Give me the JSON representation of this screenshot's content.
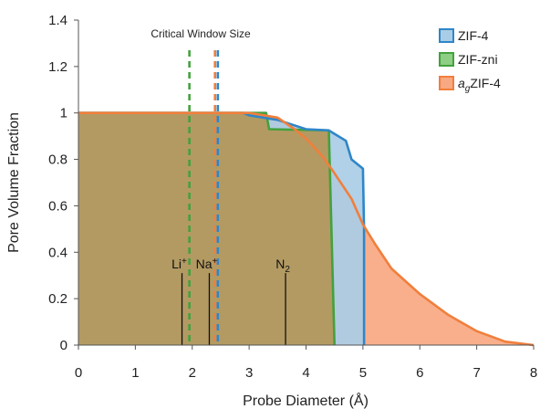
{
  "chart_data": {
    "type": "area",
    "xlabel": "Probe Diameter (Å)",
    "ylabel": "Pore Volume Fraction",
    "xlim": [
      0,
      8
    ],
    "ylim": [
      0,
      1.4
    ],
    "x_ticks": [
      "0",
      "1",
      "2",
      "3",
      "4",
      "5",
      "6",
      "7",
      "8"
    ],
    "y_ticks": [
      "0",
      "0.2",
      "0.4",
      "0.6",
      "0.8",
      "1",
      "1.2",
      "1.4"
    ],
    "grid": false,
    "legend_position": "top-right",
    "annotation": "Critical Window Size",
    "series": [
      {
        "name": "ZIF-4",
        "stroke": "#2f86c8",
        "fill": "#a9cde6",
        "points": [
          [
            0,
            1.0
          ],
          [
            2.9,
            1.0
          ],
          [
            3.0,
            0.99
          ],
          [
            3.5,
            0.97
          ],
          [
            4.0,
            0.93
          ],
          [
            4.4,
            0.925
          ],
          [
            4.5,
            0.91
          ],
          [
            4.7,
            0.88
          ],
          [
            4.75,
            0.84
          ],
          [
            4.8,
            0.8
          ],
          [
            5.0,
            0.76
          ],
          [
            5.02,
            0.5
          ],
          [
            5.02,
            0
          ]
        ]
      },
      {
        "name": "ZIF-zni",
        "stroke": "#43a13e",
        "fill": "#8fce85",
        "points": [
          [
            0,
            1.0
          ],
          [
            3.3,
            1.0
          ],
          [
            3.35,
            0.93
          ],
          [
            4.4,
            0.925
          ],
          [
            4.5,
            0.0
          ]
        ]
      },
      {
        "name": "agZIF-4",
        "stroke": "#f07f3c",
        "fill": "#f8a882",
        "points": [
          [
            0,
            1.0
          ],
          [
            3.0,
            1.0
          ],
          [
            3.5,
            0.98
          ],
          [
            3.8,
            0.93
          ],
          [
            4.0,
            0.89
          ],
          [
            4.3,
            0.81
          ],
          [
            4.5,
            0.74
          ],
          [
            4.8,
            0.63
          ],
          [
            5.0,
            0.52
          ],
          [
            5.2,
            0.44
          ],
          [
            5.5,
            0.33
          ],
          [
            6.0,
            0.22
          ],
          [
            6.5,
            0.13
          ],
          [
            7.0,
            0.06
          ],
          [
            7.5,
            0.015
          ],
          [
            8.0,
            0.0
          ]
        ]
      }
    ],
    "legend": [
      {
        "name": "ZIF-4",
        "prefix": "",
        "suffix": "ZIF-4",
        "color": "#2f86c8",
        "fill": "#a9cde6"
      },
      {
        "name": "ZIF-zni",
        "prefix": "",
        "suffix": "ZIF-zni",
        "color": "#43a13e",
        "fill": "#8fce85"
      },
      {
        "name": "agZIF-4",
        "prefix": "a",
        "sub": "g",
        "suffix": "ZIF-4",
        "color": "#f07f3c",
        "fill": "#f8a882"
      }
    ],
    "critical_windows": [
      {
        "series": "ZIF-zni",
        "x": 1.95,
        "color": "#43a13e"
      },
      {
        "series": "agZIF-4",
        "x": 2.4,
        "color": "#f07f3c"
      },
      {
        "series": "ZIF-4",
        "x": 2.45,
        "color": "#2f86c8"
      }
    ],
    "probe_markers": [
      {
        "label": "Li",
        "sup": "+",
        "sub": "",
        "x": 1.82,
        "height": 0.31
      },
      {
        "label": "Na",
        "sup": "+",
        "sub": "",
        "x": 2.3,
        "height": 0.31
      },
      {
        "label": "N",
        "sup": "",
        "sub": "2",
        "x": 3.64,
        "height": 0.31
      }
    ]
  }
}
